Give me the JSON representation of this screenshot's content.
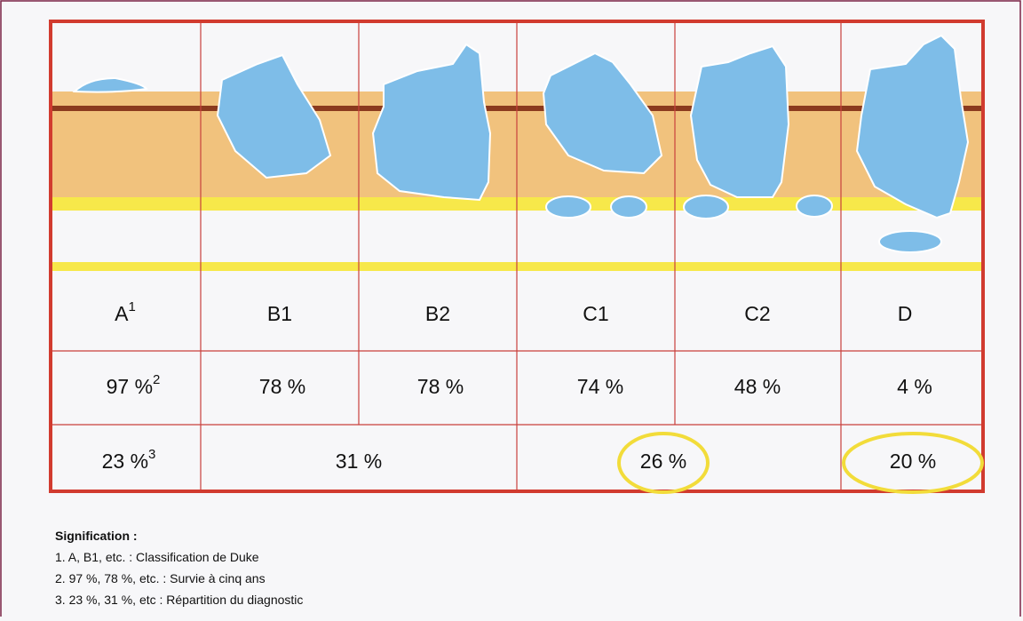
{
  "stages": [
    {
      "label": "A",
      "note": "1"
    },
    {
      "label": "B1"
    },
    {
      "label": "B2"
    },
    {
      "label": "C1"
    },
    {
      "label": "C2"
    },
    {
      "label": "D"
    }
  ],
  "survival": {
    "values": [
      "97 %",
      "78 %",
      "78 %",
      "74 %",
      "48 %",
      "4 %"
    ],
    "note": "2"
  },
  "distribution": {
    "values": [
      "23 %",
      "31 %",
      "26 %",
      "20 %"
    ],
    "note": "3"
  },
  "legend": {
    "title": "Signification :",
    "items": [
      "1. A, B1, etc. : Classification de Duke",
      "2. 97 %, 78 %, etc. : Survie à cinq ans",
      "3. 23 %, 31 %, etc : Répartition du diagnostic"
    ]
  }
}
